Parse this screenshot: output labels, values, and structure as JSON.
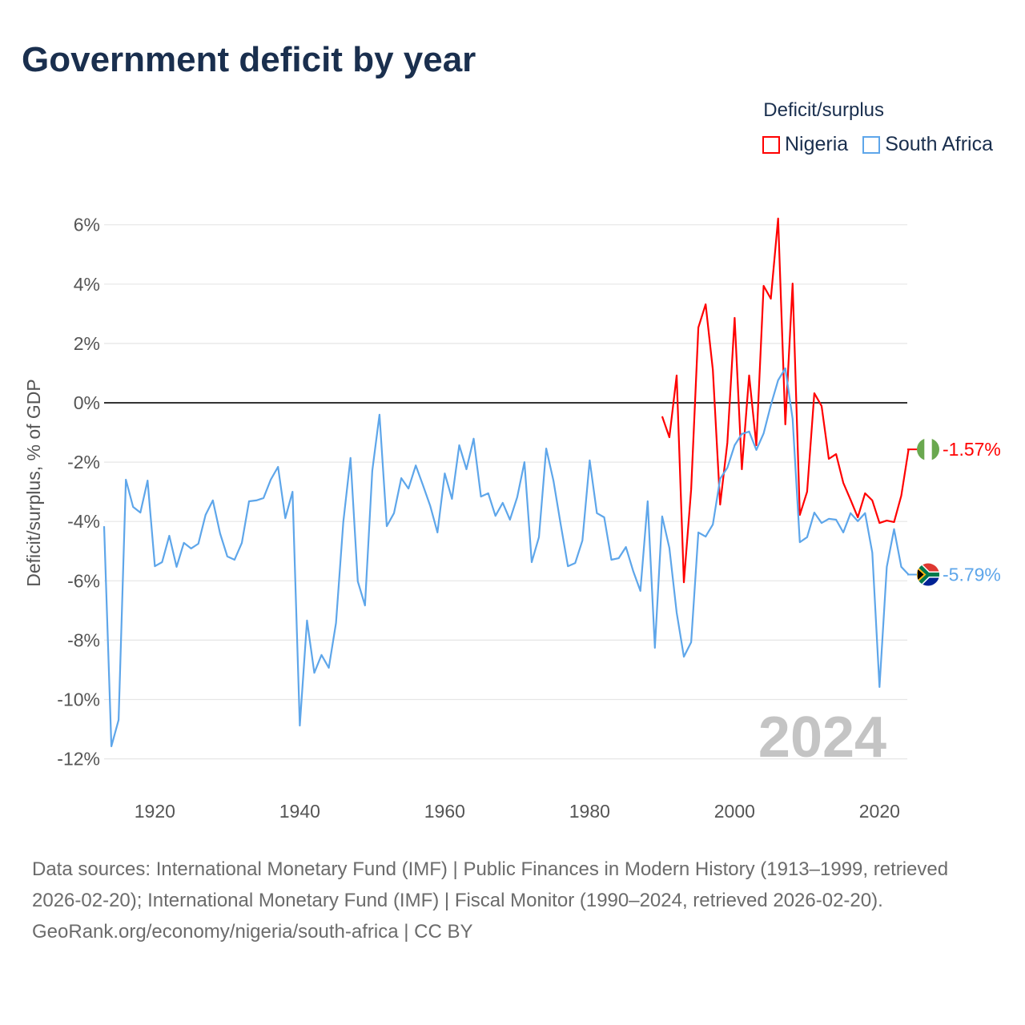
{
  "title": "Government deficit by year",
  "legend": {
    "title": "Deficit/surplus",
    "items": [
      {
        "label": "Nigeria",
        "color": "#ff0000"
      },
      {
        "label": "South Africa",
        "color": "#5ea6ea"
      }
    ]
  },
  "watermark_year": "2024",
  "footer": {
    "sources": "Data sources: International Monetary Fund (IMF) | Public Finances in Modern History (1913–1999, retrieved 2026-02-20); International Monetary Fund (IMF) | Fiscal Monitor (1990–2024, retrieved 2026-02-20).",
    "credit": "GeoRank.org/economy/nigeria/south-africa | CC BY"
  },
  "chart_data": {
    "type": "line",
    "title": "Government deficit by year",
    "xlabel": "",
    "ylabel": "Deficit/surplus, % of GDP",
    "xlim": [
      1913,
      2024
    ],
    "ylim": [
      -12,
      6
    ],
    "x_ticks": [
      1920,
      1940,
      1960,
      1980,
      2000,
      2020
    ],
    "y_ticks": [
      6,
      4,
      2,
      0,
      -2,
      -4,
      -6,
      -8,
      -10,
      -12
    ],
    "y_tick_labels": [
      "6%",
      "4%",
      "2%",
      "0%",
      "-2%",
      "-4%",
      "-6%",
      "-8%",
      "-10%",
      "-12%"
    ],
    "grid": true,
    "legend_position": "top-right",
    "series": [
      {
        "name": "Nigeria",
        "color": "#ff0000",
        "start_year": 1990,
        "end_label": "-1.57%",
        "values": [
          -0.46,
          -1.16,
          0.92,
          -6.05,
          -2.92,
          2.54,
          3.32,
          1.11,
          -3.43,
          -1.35,
          2.86,
          -2.24,
          0.92,
          -1.43,
          3.94,
          3.51,
          6.21,
          -0.73,
          4.02,
          -3.78,
          -3.0,
          0.32,
          -0.11,
          -1.89,
          -1.73,
          -2.7,
          -3.27,
          -3.86,
          -3.05,
          -3.29,
          -4.05,
          -3.97,
          -4.02,
          -3.13,
          -1.57
        ]
      },
      {
        "name": "South Africa",
        "color": "#5ea6ea",
        "start_year": 1913,
        "end_label": "-5.79%",
        "values": [
          -4.16,
          -11.58,
          -10.69,
          -2.59,
          -3.51,
          -3.7,
          -2.62,
          -5.51,
          -5.37,
          -4.48,
          -5.53,
          -4.72,
          -4.91,
          -4.75,
          -3.78,
          -3.29,
          -4.4,
          -5.18,
          -5.29,
          -4.72,
          -3.32,
          -3.29,
          -3.21,
          -2.59,
          -2.16,
          -3.89,
          -3.0,
          -10.88,
          -7.34,
          -9.1,
          -8.5,
          -8.93,
          -7.42,
          -4.02,
          -1.86,
          -6.02,
          -6.83,
          -2.29,
          -0.4,
          -4.16,
          -3.72,
          -2.54,
          -2.89,
          -2.11,
          -2.78,
          -3.48,
          -4.37,
          -2.38,
          -3.24,
          -1.43,
          -2.24,
          -1.21,
          -3.16,
          -3.05,
          -3.81,
          -3.37,
          -3.94,
          -3.18,
          -2.0,
          -5.37,
          -4.53,
          -1.54,
          -2.62,
          -4.1,
          -5.51,
          -5.4,
          -4.64,
          -1.94,
          -3.72,
          -3.86,
          -5.29,
          -5.24,
          -4.86,
          -5.67,
          -6.34,
          -3.32,
          -8.26,
          -3.83,
          -4.89,
          -7.07,
          -8.56,
          -8.07,
          -4.37,
          -4.51,
          -4.1,
          -2.56,
          -2.19,
          -1.43,
          -1.05,
          -0.97,
          -1.59,
          -1.03,
          -0.08,
          0.76,
          1.16,
          -0.54,
          -4.7,
          -4.53,
          -3.7,
          -4.05,
          -3.91,
          -3.94,
          -4.37,
          -3.72,
          -3.99,
          -3.72,
          -5.05,
          -9.58,
          -5.53,
          -4.26,
          -5.53,
          -5.79
        ]
      }
    ]
  }
}
